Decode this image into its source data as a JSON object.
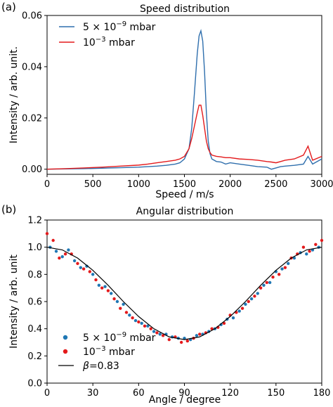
{
  "colors": {
    "blue": "#2f6fad",
    "red": "#e31a1c",
    "black": "#000000",
    "scatter_blue": "#1f77b4",
    "scatter_red": "#e41a1c"
  },
  "chart_data": [
    {
      "panel": "(a)",
      "type": "line",
      "title": "Speed distribution",
      "xlabel": "Speed / m/s",
      "ylabel": "Intensity / arb. unit.",
      "xlim": [
        0,
        3000
      ],
      "ylim": [
        -0.002,
        0.06
      ],
      "xticks": [
        0,
        500,
        1000,
        1500,
        2000,
        2500,
        3000
      ],
      "yticks": [
        0.0,
        0.02,
        0.04,
        0.06
      ],
      "xtick_labels": [
        "0",
        "500",
        "1000",
        "1500",
        "2000",
        "2500",
        "3000"
      ],
      "ytick_labels": [
        "0.00",
        "0.02",
        "0.04",
        "0.06"
      ],
      "grid": false,
      "legend_position": "top-left",
      "series": [
        {
          "name_parts": [
            "5 × 10",
            "−9",
            " mbar"
          ],
          "color": "blue",
          "x": [
            0,
            200,
            400,
            600,
            800,
            1000,
            1100,
            1200,
            1300,
            1400,
            1450,
            1500,
            1550,
            1580,
            1610,
            1640,
            1660,
            1680,
            1700,
            1720,
            1740,
            1760,
            1780,
            1800,
            1850,
            1900,
            1950,
            2000,
            2100,
            2200,
            2300,
            2400,
            2450,
            2500,
            2550,
            2600,
            2700,
            2800,
            2850,
            2900,
            3000
          ],
          "y": [
            0.0,
            0.0001,
            0.0002,
            0.0004,
            0.0006,
            0.0008,
            0.001,
            0.0012,
            0.0015,
            0.002,
            0.0025,
            0.004,
            0.008,
            0.016,
            0.03,
            0.045,
            0.052,
            0.054,
            0.05,
            0.038,
            0.022,
            0.011,
            0.006,
            0.004,
            0.003,
            0.0028,
            0.002,
            0.0025,
            0.002,
            0.0015,
            0.001,
            0.0008,
            0.0,
            0.0005,
            0.001,
            0.0012,
            0.0015,
            0.002,
            0.005,
            0.002,
            0.004
          ]
        },
        {
          "name_parts": [
            "10",
            "−3",
            " mbar"
          ],
          "color": "red",
          "x": [
            0,
            200,
            400,
            600,
            800,
            1000,
            1100,
            1200,
            1300,
            1400,
            1450,
            1500,
            1550,
            1580,
            1610,
            1640,
            1660,
            1680,
            1700,
            1720,
            1740,
            1760,
            1780,
            1800,
            1850,
            1900,
            1950,
            2000,
            2100,
            2200,
            2300,
            2400,
            2450,
            2500,
            2550,
            2600,
            2700,
            2800,
            2850,
            2900,
            3000
          ],
          "y": [
            0.0,
            0.0002,
            0.0005,
            0.0008,
            0.0012,
            0.0016,
            0.002,
            0.0025,
            0.003,
            0.0035,
            0.004,
            0.005,
            0.008,
            0.012,
            0.017,
            0.022,
            0.025,
            0.025,
            0.021,
            0.016,
            0.011,
            0.008,
            0.0065,
            0.0055,
            0.005,
            0.0048,
            0.0045,
            0.0045,
            0.004,
            0.0038,
            0.0035,
            0.003,
            0.0028,
            0.0025,
            0.003,
            0.0035,
            0.004,
            0.0055,
            0.009,
            0.0035,
            0.005
          ]
        }
      ]
    },
    {
      "panel": "(b)",
      "type": "scatter",
      "title": "Angular distribution",
      "xlabel": "Angle / degree",
      "ylabel": "Intensity / arb. unit",
      "xlim": [
        0,
        180
      ],
      "ylim": [
        0.0,
        1.2
      ],
      "xticks": [
        0,
        30,
        60,
        90,
        120,
        150,
        180
      ],
      "yticks": [
        0.0,
        0.2,
        0.4,
        0.6,
        0.8,
        1.0,
        1.2
      ],
      "xtick_labels": [
        "0",
        "30",
        "60",
        "90",
        "120",
        "150",
        "180"
      ],
      "ytick_labels": [
        "0.0",
        "0.2",
        "0.4",
        "0.6",
        "0.8",
        "1.0",
        "1.2"
      ],
      "grid": false,
      "legend_position": "lower-left",
      "series": [
        {
          "name_parts": [
            "5 × 10",
            "−9",
            " mbar"
          ],
          "kind": "points",
          "color": "scatter_blue",
          "x": [
            2,
            6,
            10,
            14,
            18,
            22,
            26,
            30,
            34,
            38,
            42,
            46,
            50,
            54,
            58,
            62,
            66,
            70,
            74,
            78,
            82,
            86,
            90,
            94,
            98,
            102,
            106,
            110,
            114,
            118,
            122,
            126,
            130,
            134,
            138,
            142,
            146,
            150,
            154,
            158,
            162,
            166,
            170,
            174,
            178
          ],
          "y": [
            1.0,
            0.97,
            0.93,
            0.98,
            0.9,
            0.85,
            0.86,
            0.8,
            0.72,
            0.71,
            0.66,
            0.6,
            0.58,
            0.5,
            0.46,
            0.44,
            0.42,
            0.38,
            0.36,
            0.36,
            0.34,
            0.33,
            0.33,
            0.32,
            0.35,
            0.36,
            0.38,
            0.4,
            0.43,
            0.47,
            0.48,
            0.53,
            0.58,
            0.62,
            0.66,
            0.72,
            0.74,
            0.82,
            0.84,
            0.88,
            0.92,
            0.96,
            0.95,
            0.98,
            1.0
          ]
        },
        {
          "name_parts": [
            "10",
            "−3",
            " mbar"
          ],
          "kind": "points",
          "color": "scatter_red",
          "x": [
            0,
            4,
            8,
            12,
            16,
            20,
            24,
            28,
            32,
            36,
            40,
            44,
            48,
            52,
            56,
            60,
            64,
            68,
            72,
            76,
            80,
            84,
            88,
            92,
            96,
            100,
            104,
            108,
            112,
            116,
            120,
            124,
            128,
            132,
            136,
            140,
            144,
            148,
            152,
            156,
            160,
            164,
            168,
            172,
            176,
            180
          ],
          "y": [
            1.1,
            1.05,
            0.92,
            0.95,
            0.95,
            0.88,
            0.84,
            0.82,
            0.76,
            0.7,
            0.68,
            0.62,
            0.55,
            0.52,
            0.48,
            0.45,
            0.42,
            0.4,
            0.37,
            0.35,
            0.32,
            0.34,
            0.3,
            0.31,
            0.33,
            0.36,
            0.37,
            0.4,
            0.41,
            0.44,
            0.5,
            0.52,
            0.55,
            0.6,
            0.64,
            0.7,
            0.74,
            0.78,
            0.8,
            0.85,
            0.92,
            0.95,
            1.0,
            0.97,
            1.02,
            1.05
          ]
        },
        {
          "name": "β=0.83",
          "name_parts": [
            "β",
            "=0.83"
          ],
          "kind": "curve",
          "color": "black",
          "x": [
            0,
            10,
            20,
            30,
            40,
            50,
            60,
            70,
            80,
            90,
            100,
            110,
            120,
            130,
            140,
            150,
            160,
            170,
            180
          ],
          "y": [
            1.0,
            0.98,
            0.92,
            0.83,
            0.72,
            0.6,
            0.49,
            0.4,
            0.34,
            0.32,
            0.34,
            0.4,
            0.49,
            0.6,
            0.72,
            0.83,
            0.92,
            0.98,
            1.0
          ]
        }
      ]
    }
  ]
}
